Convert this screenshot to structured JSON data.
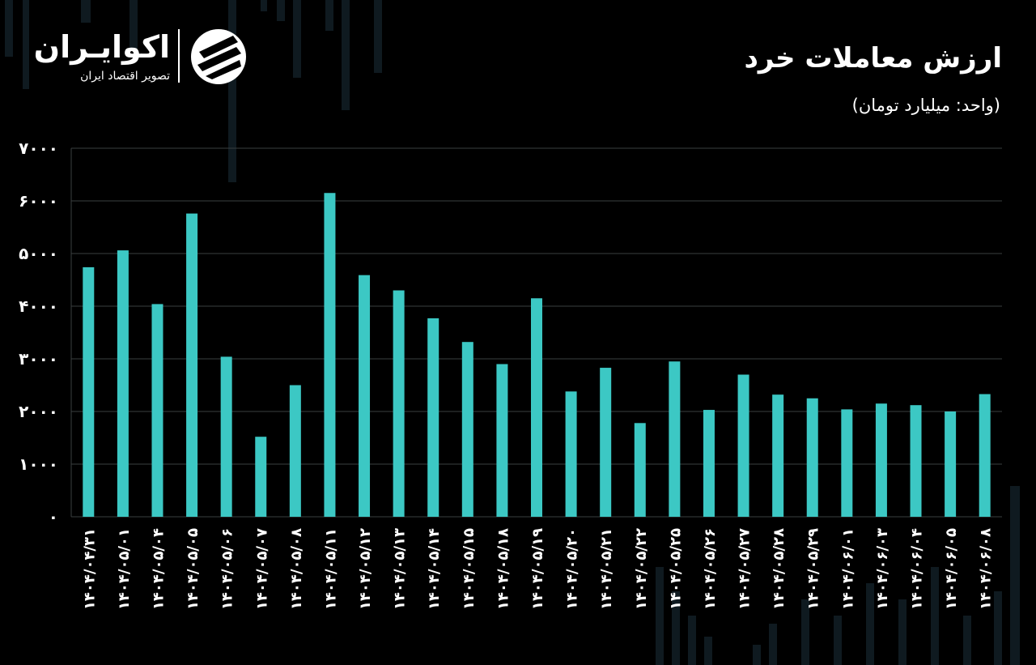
{
  "brand": {
    "name": "اکوایـران",
    "tagline": "تصویر اقتصاد ایران"
  },
  "colors": {
    "background": "#000000",
    "bar": "#3cc8c4",
    "grid": "#3a3f40",
    "text": "#ffffff"
  },
  "chart_data": {
    "type": "bar",
    "title": "ارزش معاملات خرد",
    "subtitle": "(واحد: میلیارد تومان)",
    "xlabel": "",
    "ylabel": "",
    "ylim": [
      0,
      7000
    ],
    "grid": true,
    "y_ticks": [
      0,
      1000,
      2000,
      3000,
      4000,
      5000,
      6000,
      7000
    ],
    "y_tick_labels": [
      "0",
      "1000",
      "2000",
      "3000",
      "4000",
      "5000",
      "6000",
      "7000"
    ],
    "categories": [
      "1404/04/31",
      "1404/05/01",
      "1404/05/04",
      "1404/05/05",
      "1404/05/06",
      "1404/05/07",
      "1404/05/08",
      "1404/05/11",
      "1404/05/12",
      "1404/05/13",
      "1404/05/14",
      "1404/05/15",
      "1404/05/18",
      "1404/05/19",
      "1404/05/20",
      "1404/05/21",
      "1404/05/22",
      "1404/05/25",
      "1404/05/26",
      "1404/05/27",
      "1404/05/28",
      "1404/05/29",
      "1404/06/01",
      "1404/06/03",
      "1404/06/04",
      "1404/06/05",
      "1404/06/08"
    ],
    "values": [
      4740,
      5060,
      4040,
      5760,
      3040,
      1520,
      2500,
      6150,
      4590,
      4300,
      3770,
      3320,
      2900,
      4150,
      2380,
      2830,
      1780,
      2950,
      2030,
      2700,
      2320,
      2250,
      2040,
      2150,
      2120,
      2000,
      2330
    ]
  }
}
